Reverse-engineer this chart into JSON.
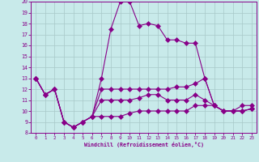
{
  "xlabel": "Windchill (Refroidissement éolien,°C)",
  "xlim_min": 0,
  "xlim_max": 23,
  "ylim_min": 8,
  "ylim_max": 20,
  "xticks": [
    0,
    1,
    2,
    3,
    4,
    5,
    6,
    7,
    8,
    9,
    10,
    11,
    12,
    13,
    14,
    15,
    16,
    17,
    18,
    19,
    20,
    21,
    22,
    23
  ],
  "yticks": [
    8,
    9,
    10,
    11,
    12,
    13,
    14,
    15,
    16,
    17,
    18,
    19,
    20
  ],
  "background_color": "#c8eaea",
  "grid_color": "#a8c8c8",
  "line_color": "#880088",
  "spine_color": "#880088",
  "line1_y": [
    13,
    11.5,
    12,
    9,
    8.5,
    9,
    9.5,
    13,
    17.5,
    20,
    20,
    17.8,
    18,
    17.8,
    16.5,
    16.5,
    16.2,
    16.2,
    13,
    10.5,
    10,
    10,
    10.5,
    10.5
  ],
  "line2_y": [
    13,
    11.5,
    12,
    9,
    8.5,
    9,
    9.5,
    12,
    12,
    12,
    12,
    12,
    12,
    12,
    12,
    12.2,
    12.2,
    12.5,
    13,
    10.5,
    10,
    10,
    10,
    10.2
  ],
  "line3_y": [
    13,
    11.5,
    12,
    9,
    8.5,
    9,
    9.5,
    11,
    11,
    11,
    11,
    11.2,
    11.5,
    11.5,
    11,
    11,
    11,
    11.5,
    11,
    10.5,
    10,
    10,
    10,
    10.2
  ],
  "line4_y": [
    13,
    11.5,
    12,
    9,
    8.5,
    9,
    9.5,
    9.5,
    9.5,
    9.5,
    9.8,
    10,
    10,
    10,
    10,
    10,
    10,
    10.5,
    10.5,
    10.5,
    10,
    10,
    10,
    10.2
  ]
}
